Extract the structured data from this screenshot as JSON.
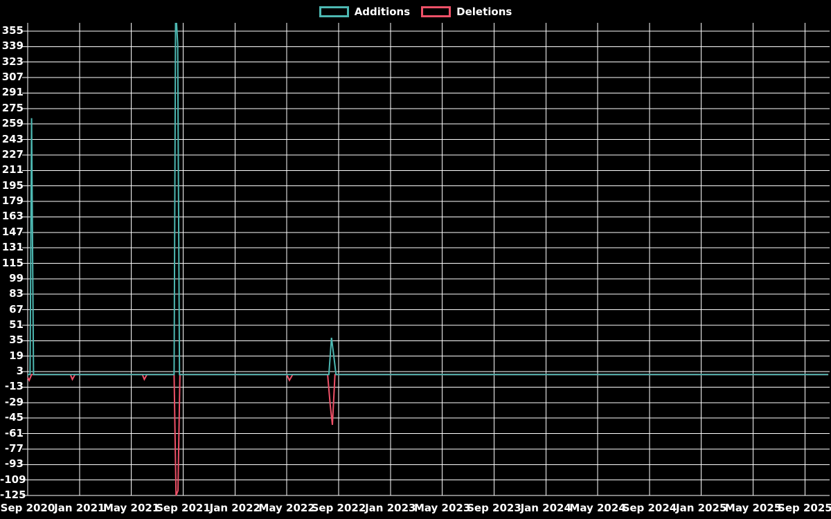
{
  "legend": [
    {
      "label": "Additions",
      "color": "#4db8b2"
    },
    {
      "label": "Deletions",
      "color": "#ef5168"
    }
  ],
  "chart_data": {
    "type": "line",
    "title": "",
    "xlabel": "",
    "ylabel": "",
    "background_color": "#000000",
    "grid_color": "#ffffff",
    "text_color": "#ffffff",
    "legend_position": "top-center",
    "grid": true,
    "x_axis": {
      "labels": [
        "Sep 2020",
        "Jan 2021",
        "May 2021",
        "Sep 2021",
        "Jan 2022",
        "May 2022",
        "Sep 2022",
        "Jan 2023",
        "May 2023",
        "Sep 2023",
        "Jan 2024",
        "May 2024",
        "Sep 2024",
        "Jan 2025",
        "May 2025",
        "Sep 2025"
      ],
      "months_per_tick": 4
    },
    "y_axis": {
      "ticks": [
        355,
        339,
        323,
        307,
        291,
        275,
        259,
        243,
        227,
        211,
        195,
        179,
        163,
        147,
        131,
        115,
        99,
        83,
        67,
        51,
        35,
        19,
        3,
        -13,
        -29,
        -45,
        -61,
        -77,
        -93,
        -109,
        -125
      ],
      "max_tick": 355,
      "min_tick": -125,
      "tick_step": 16
    },
    "note_units_x": "series points are [months_after_Sep_2020, value]",
    "series": [
      {
        "name": "Additions",
        "color": "#4db8b2",
        "points": [
          [
            0,
            0
          ],
          [
            0.18,
            0
          ],
          [
            0.3,
            265
          ],
          [
            0.45,
            0
          ],
          [
            11.3,
            0
          ],
          [
            11.42,
            380
          ],
          [
            11.58,
            342
          ],
          [
            11.72,
            0
          ],
          [
            23.25,
            0
          ],
          [
            23.45,
            38
          ],
          [
            23.62,
            20
          ],
          [
            23.8,
            0
          ],
          [
            61.8,
            0
          ]
        ]
      },
      {
        "name": "Deletions",
        "color": "#ef5168",
        "points": [
          [
            0,
            -3
          ],
          [
            0.12,
            -6
          ],
          [
            0.3,
            0
          ],
          [
            3.3,
            0
          ],
          [
            3.45,
            -5
          ],
          [
            3.65,
            0
          ],
          [
            8.85,
            0
          ],
          [
            9.0,
            -5
          ],
          [
            9.2,
            0
          ],
          [
            11.3,
            0
          ],
          [
            11.45,
            -125
          ],
          [
            11.6,
            -120
          ],
          [
            11.75,
            0
          ],
          [
            20.0,
            0
          ],
          [
            20.2,
            -6
          ],
          [
            20.45,
            0
          ],
          [
            23.15,
            0
          ],
          [
            23.35,
            -31
          ],
          [
            23.52,
            -52
          ],
          [
            23.72,
            0
          ],
          [
            61.8,
            0
          ]
        ]
      }
    ],
    "events": [
      {
        "when": "mid Sep 2020",
        "additions_peak": 265,
        "deletions_dip": -6
      },
      {
        "when": "mid Dec 2020",
        "deletions_dip": -5
      },
      {
        "when": "early Jun 2021",
        "deletions_dip": -5
      },
      {
        "when": "mid-late Aug 2021",
        "additions_peak": "clipped above 363 (off chart top)",
        "deletions_dip": -125
      },
      {
        "when": "May 2022",
        "deletions_dip": -6
      },
      {
        "when": "mid-late Aug 2022",
        "additions_peak": 38,
        "deletions_dip": -52
      }
    ]
  }
}
